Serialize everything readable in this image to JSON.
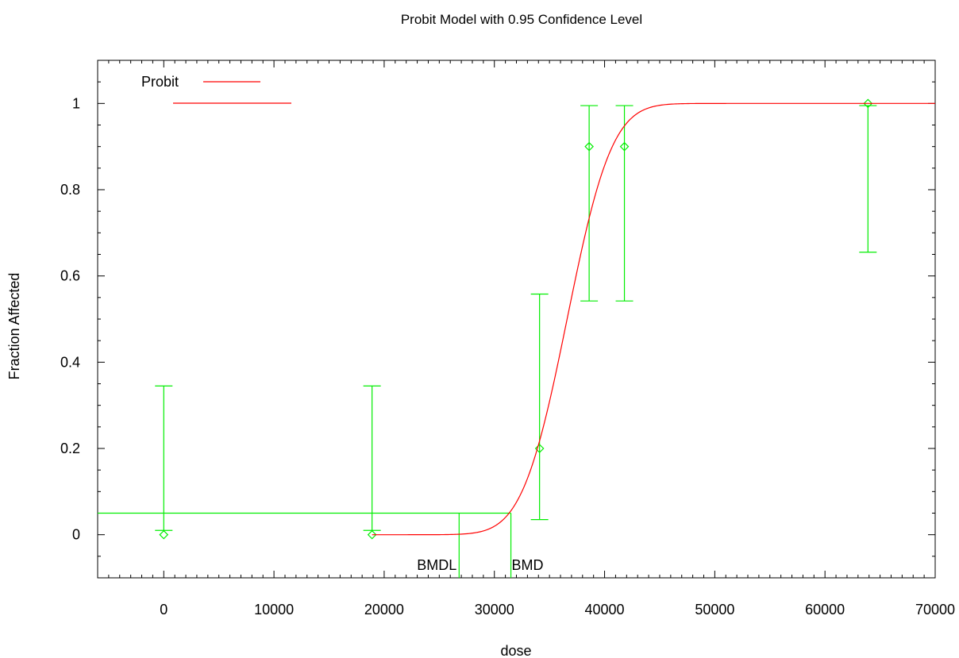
{
  "chart_data": {
    "type": "line",
    "title": "Probit Model with 0.95 Confidence Level",
    "xlabel": "dose",
    "ylabel": "Fraction Affected",
    "xlim": [
      -6000,
      70000
    ],
    "ylim": [
      -0.1,
      1.1
    ],
    "x_ticks": [
      0,
      10000,
      20000,
      30000,
      40000,
      50000,
      60000,
      70000
    ],
    "x_tick_labels": [
      "0",
      "10000",
      "20000",
      "30000",
      "40000",
      "50000",
      "60000",
      "70000"
    ],
    "y_ticks": [
      0,
      0.2,
      0.4,
      0.6,
      0.8,
      1
    ],
    "y_tick_labels": [
      "0",
      "0.2",
      "0.4",
      "0.6",
      "0.8",
      "1"
    ],
    "legend": {
      "position": "top-left",
      "entries": [
        {
          "label": "Probit",
          "color": "#ff0000"
        }
      ]
    },
    "series": [
      {
        "name": "Probit",
        "kind": "fitted-curve",
        "color": "#ff0000",
        "x_range": [
          18900,
          70000
        ],
        "mean": 36600,
        "sd": 3200
      },
      {
        "kind": "observed-points-with-error-bars",
        "color": "#00ee00",
        "points": [
          {
            "x": 0,
            "y": 0,
            "lower": 0.01,
            "upper": 0.345
          },
          {
            "x": 18900,
            "y": 0,
            "lower": 0.01,
            "upper": 0.345
          },
          {
            "x": 34100,
            "y": 0.2,
            "lower": 0.035,
            "upper": 0.558
          },
          {
            "x": 38600,
            "y": 0.9,
            "lower": 0.542,
            "upper": 0.995
          },
          {
            "x": 41800,
            "y": 0.9,
            "lower": 0.542,
            "upper": 0.995
          },
          {
            "x": 63900,
            "y": 1.0,
            "lower": 0.655,
            "upper": 0.995
          }
        ]
      }
    ],
    "bmr_level": 0.05,
    "bmd": 31500,
    "bmdl": 26800,
    "annotations": {
      "bmd_label": "BMD",
      "bmdl_label": "BMDL"
    },
    "grid": false
  }
}
